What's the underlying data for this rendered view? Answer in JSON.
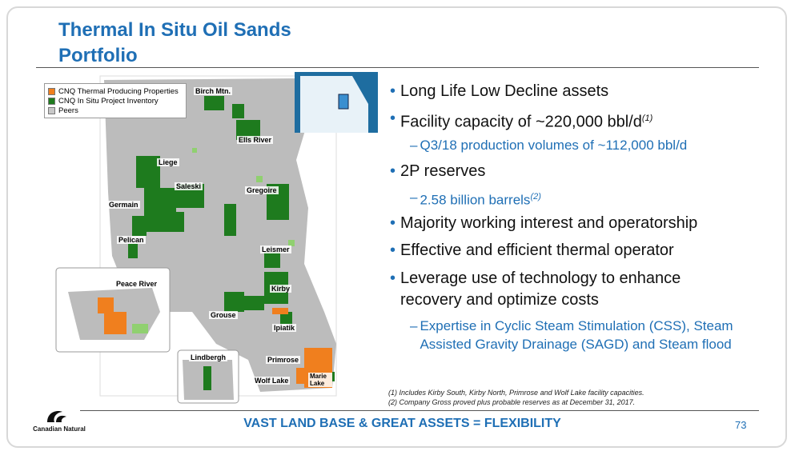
{
  "header": {
    "title_lines": [
      "Thermal In Situ Oil Sands",
      "Portfolio"
    ]
  },
  "legend": {
    "items": [
      "CNQ Thermal Producing Properties",
      "CNQ In Situ Project Inventory",
      "Peers"
    ]
  },
  "map": {
    "labels": [
      "Birch Mtn.",
      "Ells River",
      "Liege",
      "Saleski",
      "Gregoire",
      "Germain",
      "Pelican",
      "Leismer",
      "Kirby",
      "Grouse",
      "Ipiatik",
      "Primrose",
      "Wolf Lake",
      "Marie Lake"
    ],
    "insets": [
      "Peace River",
      "Lindbergh"
    ]
  },
  "bullets": [
    {
      "text": "Long Life Low Decline assets"
    },
    {
      "text": "Facility capacity of ~220,000 bbl/d",
      "note": "(1)",
      "sub": [
        {
          "text": "Q3/18 production volumes of ~112,000 bbl/d"
        }
      ]
    },
    {
      "text": "2P reserves",
      "sub": [
        {
          "text": "2.58 billion barrels",
          "note": "(2)"
        }
      ]
    },
    {
      "text": "Majority working interest and operatorship"
    },
    {
      "text": "Effective and efficient thermal operator"
    },
    {
      "text": "Leverage use of technology to enhance recovery and optimize costs",
      "sub": [
        {
          "text": "Expertise in Cyclic Steam Stimulation (CSS), Steam Assisted Gravity Drainage (SAGD) and Steam flood"
        }
      ]
    }
  ],
  "footnotes": [
    "(1) Includes Kirby South, Kirby North, Primrose and Wolf Lake facility capacities.",
    "(2) Company Gross proved plus probable reserves as at December 31, 2017."
  ],
  "footer": {
    "tagline": "VAST LAND BASE & GREAT ASSETS = FLEXIBILITY",
    "page_number": "73",
    "logo_text": "Canadian Natural"
  }
}
